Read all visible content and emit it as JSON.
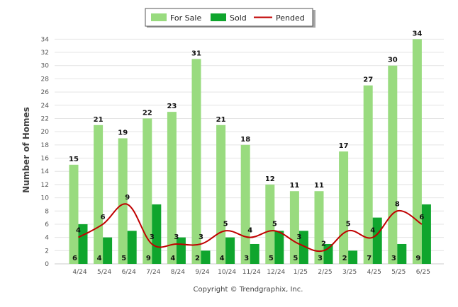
{
  "chart_data": {
    "type": "bar",
    "categories": [
      "4/24",
      "5/24",
      "6/24",
      "7/24",
      "8/24",
      "9/24",
      "10/24",
      "11/24",
      "12/24",
      "1/25",
      "2/25",
      "3/25",
      "4/25",
      "5/25",
      "6/25"
    ],
    "series": [
      {
        "name": "For Sale",
        "type": "bar",
        "color": "#99db7f",
        "values": [
          15,
          21,
          19,
          22,
          23,
          31,
          21,
          18,
          12,
          11,
          11,
          17,
          27,
          30,
          34
        ]
      },
      {
        "name": "Sold",
        "type": "bar",
        "color": "#0fa52d",
        "values": [
          6,
          4,
          5,
          9,
          4,
          2,
          4,
          3,
          5,
          5,
          3,
          2,
          7,
          3,
          9
        ]
      },
      {
        "name": "Pended",
        "type": "line",
        "color": "#c00000",
        "values": [
          4,
          6,
          9,
          3,
          3,
          3,
          5,
          4,
          5,
          3,
          2,
          5,
          4,
          8,
          6
        ]
      }
    ],
    "ylabel": "Number of Homes",
    "xlabel": "",
    "ylim": [
      0,
      35
    ],
    "yticks": [
      0,
      2,
      4,
      6,
      8,
      10,
      12,
      14,
      16,
      18,
      20,
      22,
      24,
      26,
      28,
      30,
      32,
      34
    ],
    "grid": true,
    "legend": "top-center"
  },
  "footer": {
    "copyright": "Copyright © Trendgraphix, Inc."
  }
}
